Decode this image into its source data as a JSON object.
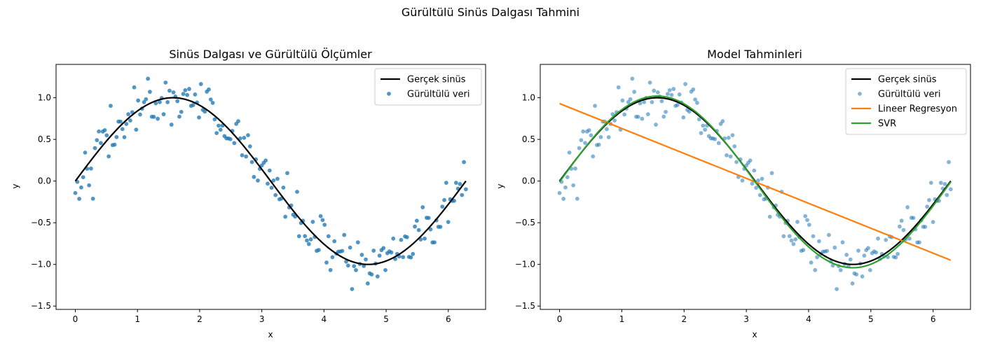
{
  "figure_title": "Gürültülü Sinüs Dalgası Tahmini",
  "colors": {
    "true_sine": "#000000",
    "noisy": "#1f77b4",
    "linear": "#ff7f0e",
    "svr": "#2ca02c"
  },
  "chart_data": [
    {
      "type": "scatter",
      "title": "Sinüs Dalgası ve Gürültülü Ölçümler",
      "xlabel": "x",
      "ylabel": "y",
      "xlim": [
        -0.31,
        6.6
      ],
      "ylim": [
        -1.54,
        1.4
      ],
      "xticks": [
        0,
        1,
        2,
        3,
        4,
        5,
        6
      ],
      "xtick_labels": [
        "0",
        "1",
        "2",
        "3",
        "4",
        "5",
        "6"
      ],
      "yticks": [
        -1.5,
        -1.0,
        -0.5,
        0.0,
        0.5,
        1.0
      ],
      "ytick_labels": [
        "−1.5",
        "−1.0",
        "−0.5",
        "0.0",
        "0.5",
        "1.0"
      ],
      "legend_position": "top-right",
      "legend": [
        "Gerçek sinüs",
        "Gürültülü veri"
      ],
      "series": [
        {
          "name": "Gerçek sinüs",
          "kind": "line",
          "function": "sin",
          "x_range": [
            0,
            6.283
          ]
        },
        {
          "name": "Gürültülü veri",
          "kind": "scatter",
          "noise_seed": 42,
          "noise_sd": 0.15,
          "count": 200,
          "x_range": [
            0,
            6.283
          ]
        }
      ]
    },
    {
      "type": "line",
      "title": "Model Tahminleri",
      "xlabel": "x",
      "ylabel": "y",
      "xlim": [
        -0.31,
        6.6
      ],
      "ylim": [
        -1.54,
        1.4
      ],
      "xticks": [
        0,
        1,
        2,
        3,
        4,
        5,
        6
      ],
      "xtick_labels": [
        "0",
        "1",
        "2",
        "3",
        "4",
        "5",
        "6"
      ],
      "yticks": [
        -1.5,
        -1.0,
        -0.5,
        0.0,
        0.5,
        1.0
      ],
      "ytick_labels": [
        "−1.5",
        "−1.0",
        "−0.5",
        "0.0",
        "0.5",
        "1.0"
      ],
      "legend_position": "top-right",
      "legend": [
        "Gerçek sinüs",
        "Gürültülü veri",
        "Lineer Regresyon",
        "SVR"
      ],
      "series": [
        {
          "name": "Gerçek sinüs",
          "kind": "line",
          "function": "sin",
          "x_range": [
            0,
            6.283
          ]
        },
        {
          "name": "Gürültülü veri",
          "kind": "scatter",
          "noise_seed": 42,
          "noise_sd": 0.15,
          "count": 200,
          "x_range": [
            0,
            6.283
          ]
        },
        {
          "name": "Lineer Regresyon",
          "kind": "line",
          "x": [
            0,
            6.283
          ],
          "y": [
            0.93,
            -0.95
          ]
        },
        {
          "name": "SVR",
          "kind": "line",
          "function": "svr",
          "amplitude": 1.03,
          "offset": -0.01,
          "x_range": [
            0,
            6.283
          ]
        }
      ]
    }
  ]
}
